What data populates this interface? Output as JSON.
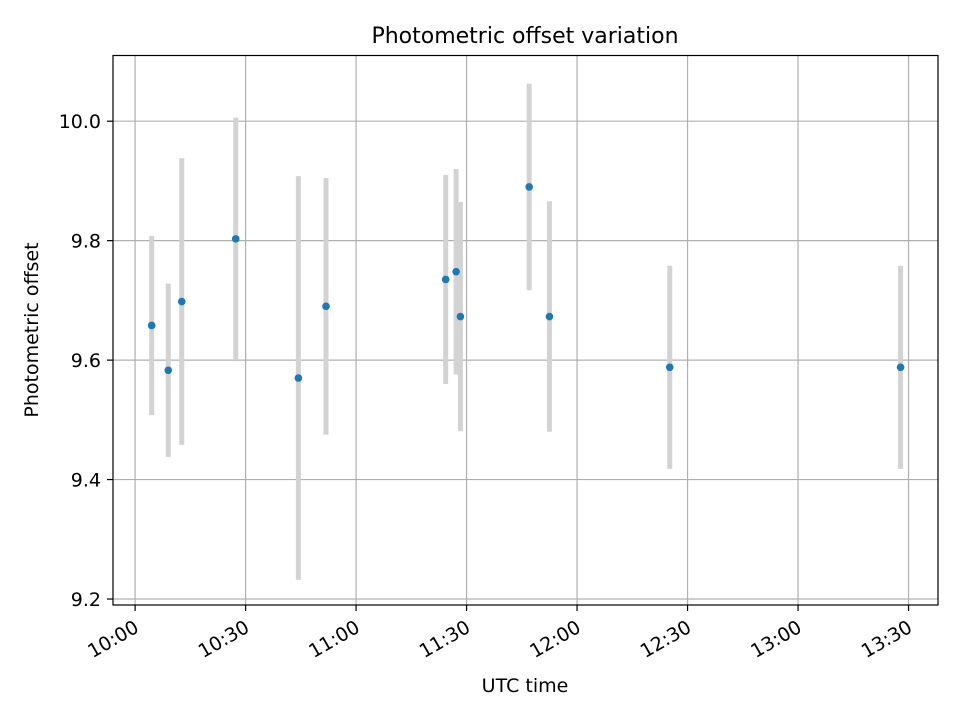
{
  "chart_data": {
    "type": "scatter",
    "title": "Photometric offset variation",
    "xlabel": "UTC time",
    "ylabel": "Photometric offset",
    "grid": true,
    "legend": "none",
    "xlim": [
      "09:54",
      "13:38"
    ],
    "ylim": [
      9.19,
      10.11
    ],
    "x_ticks": [
      "10:00",
      "10:30",
      "11:00",
      "11:30",
      "12:00",
      "12:30",
      "13:00",
      "13:30"
    ],
    "y_ticks": [
      9.2,
      9.4,
      9.6,
      9.8,
      10.0
    ],
    "y_tick_labels": [
      "9.2",
      "9.4",
      "9.6",
      "9.8",
      "10.0"
    ],
    "series": [
      {
        "marker_color": "#1f77b4",
        "errorbar_color": "#d3d3d3",
        "points": [
          {
            "x": "10:04:30",
            "y": 9.658,
            "err": 0.15
          },
          {
            "x": "10:09:00",
            "y": 9.583,
            "err": 0.145
          },
          {
            "x": "10:12:40",
            "y": 9.698,
            "err": 0.24
          },
          {
            "x": "10:27:20",
            "y": 9.803,
            "err": 0.203
          },
          {
            "x": "10:44:20",
            "y": 9.57,
            "err": 0.338
          },
          {
            "x": "10:51:50",
            "y": 9.69,
            "err": 0.215
          },
          {
            "x": "11:24:20",
            "y": 9.735,
            "err": 0.175
          },
          {
            "x": "11:27:10",
            "y": 9.748,
            "err": 0.172
          },
          {
            "x": "11:28:20",
            "y": 9.673,
            "err": 0.192
          },
          {
            "x": "11:47:00",
            "y": 9.89,
            "err": 0.173
          },
          {
            "x": "11:52:30",
            "y": 9.673,
            "err": 0.193
          },
          {
            "x": "12:25:10",
            "y": 9.588,
            "err": 0.17
          },
          {
            "x": "13:27:50",
            "y": 9.588,
            "err": 0.17
          }
        ]
      }
    ]
  }
}
